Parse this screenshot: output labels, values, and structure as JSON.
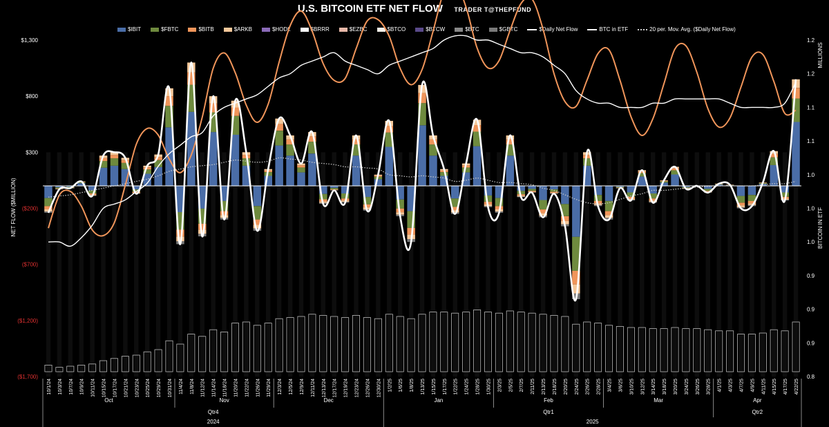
{
  "title": "U.S. BITCOIN ETF NET FLOW",
  "subtitle": "TRADER T@THEPFUND",
  "colors": {
    "background": "#000000",
    "IBIT": "#4a6da7",
    "FBTC": "#6e8a3e",
    "BITB": "#f0955a",
    "ARKB": "#f5c89a",
    "HODL": "#8a6ab8",
    "BRRR": "#ffffff",
    "EZBC": "#e8b8a8",
    "BTCO": "#f4f0e8",
    "BTCW": "#5a4a8a",
    "BTC": "#888888",
    "GBTC": "#7a7a7a",
    "daily_net_flow": "#ffffff",
    "btc_in_etf": "#ffffff",
    "moving_avg": "#cccccc",
    "negative_tick": "#e03030"
  },
  "legend": [
    {
      "key": "IBIT",
      "label": "$IBIT",
      "kind": "bar"
    },
    {
      "key": "FBTC",
      "label": "$FBTC",
      "kind": "bar"
    },
    {
      "key": "BITB",
      "label": "$BITB",
      "kind": "bar"
    },
    {
      "key": "ARKB",
      "label": "$ARKB",
      "kind": "bar"
    },
    {
      "key": "HODL",
      "label": "$HODL",
      "kind": "bar"
    },
    {
      "key": "BRRR",
      "label": "$BRRR",
      "kind": "bar"
    },
    {
      "key": "EZBC",
      "label": "$EZBC",
      "kind": "bar"
    },
    {
      "key": "BTCO",
      "label": "$BTCO",
      "kind": "bar"
    },
    {
      "key": "BTCW",
      "label": "$BTCW",
      "kind": "bar"
    },
    {
      "key": "BTC",
      "label": "$BTC",
      "kind": "bar"
    },
    {
      "key": "GBTC",
      "label": "$GBTC",
      "kind": "bar"
    },
    {
      "key": "daily_net_flow",
      "label": "$Daily Net Flow",
      "kind": "line"
    },
    {
      "key": "btc_in_etf",
      "label": "BTC in ETF",
      "kind": "line"
    },
    {
      "key": "moving_avg",
      "label": "20 per. Mov. Avg. ($Daily Net Flow)",
      "kind": "dotted"
    }
  ],
  "chart_data": {
    "type": "bar",
    "title": "U.S. BITCOIN ETF NET FLOW",
    "ylabel": "NET FLOW ($MILLION)",
    "y2label": "BITCOIN IN ETF",
    "y3label": "MILLIONS",
    "ylim": [
      -1700,
      1300
    ],
    "y2lim": [
      0.8,
      1.2
    ],
    "y_ticks": [
      {
        "v": 1300,
        "label": "$1,300",
        "negative": false
      },
      {
        "v": 800,
        "label": "$800",
        "negative": false
      },
      {
        "v": 300,
        "label": "$300",
        "negative": false
      },
      {
        "v": -200,
        "label": "($200)",
        "negative": true
      },
      {
        "v": -700,
        "label": "($700)",
        "negative": true
      },
      {
        "v": -1200,
        "label": "($1,200)",
        "negative": true
      },
      {
        "v": -1700,
        "label": "($1,700)",
        "negative": true
      }
    ],
    "y2_ticks": [
      "1.2",
      "1.2",
      "1.1",
      "1.1",
      "1.0",
      "1.0",
      "1.0",
      "0.9",
      "0.9",
      "0.9",
      "0.8"
    ],
    "date_labels": [
      "10/1/24",
      "10/3/24",
      "10/7/24",
      "10/9/24",
      "10/11/24",
      "10/15/24",
      "10/17/24",
      "10/21/24",
      "10/23/24",
      "10/25/24",
      "10/29/24",
      "10/31/24",
      "11/4/24",
      "11/8/24",
      "11/12/24",
      "11/14/24",
      "11/18/24",
      "11/20/24",
      "11/22/24",
      "11/26/24",
      "11/29/24",
      "12/3/24",
      "12/5/24",
      "12/9/24",
      "12/11/24",
      "12/13/24",
      "12/17/24",
      "12/19/24",
      "12/23/24",
      "12/26/24",
      "12/30/24",
      "1/2/25",
      "1/6/25",
      "1/8/25",
      "1/13/25",
      "1/15/25",
      "1/17/25",
      "1/22/25",
      "1/24/25",
      "1/28/25",
      "1/30/25",
      "2/3/25",
      "2/5/25",
      "2/7/25",
      "2/11/25",
      "2/13/25",
      "2/18/25",
      "2/20/25",
      "2/24/25",
      "2/26/25",
      "2/28/25",
      "3/4/25",
      "3/6/25",
      "3/10/25",
      "3/12/25",
      "3/14/25",
      "3/18/25",
      "3/20/25",
      "3/24/25",
      "3/26/25",
      "3/28/25",
      "4/1/25",
      "4/3/25",
      "4/7/25",
      "4/9/25",
      "4/11/25",
      "4/15/25",
      "4/17/25",
      "4/22/25"
    ],
    "months": [
      {
        "label": "Oct",
        "start": 0,
        "end": 11
      },
      {
        "label": "Nov",
        "start": 12,
        "end": 20
      },
      {
        "label": "Dec",
        "start": 21,
        "end": 30
      },
      {
        "label": "Jan",
        "start": 31,
        "end": 40
      },
      {
        "label": "Feb",
        "start": 41,
        "end": 50
      },
      {
        "label": "Mar",
        "start": 51,
        "end": 60
      },
      {
        "label": "Apr",
        "start": 61,
        "end": 68
      }
    ],
    "quarters": [
      {
        "label": "Qtr4",
        "start": 0,
        "end": 30
      },
      {
        "label": "Qtr1",
        "start": 31,
        "end": 60
      },
      {
        "label": "Qtr2",
        "start": 61,
        "end": 68
      }
    ],
    "years": [
      {
        "label": "2024",
        "start": 0,
        "end": 30
      },
      {
        "label": "2025",
        "start": 31,
        "end": 68
      }
    ],
    "daily_net_flow": [
      -240,
      -30,
      -20,
      40,
      -90,
      270,
      300,
      250,
      -70,
      180,
      280,
      870,
      -520,
      1100,
      -450,
      800,
      -300,
      760,
      300,
      -400,
      150,
      600,
      450,
      200,
      480,
      -160,
      -40,
      -150,
      450,
      -220,
      100,
      580,
      -270,
      -500,
      900,
      450,
      150,
      -250,
      200,
      590,
      -190,
      -240,
      450,
      -100,
      -60,
      -280,
      -70,
      -360,
      -1010,
      300,
      -180,
      -300,
      -20,
      -130,
      140,
      -150,
      50,
      170,
      -25,
      0,
      -60,
      20,
      10,
      -200,
      -180,
      30,
      310,
      -130,
      950
    ],
    "btc_in_etf": [
      0.96,
      0.96,
      0.955,
      0.965,
      0.98,
      1.0,
      1.005,
      1.01,
      1.02,
      1.03,
      1.05,
      1.065,
      1.075,
      1.085,
      1.09,
      1.11,
      1.12,
      1.125,
      1.13,
      1.135,
      1.145,
      1.155,
      1.16,
      1.17,
      1.175,
      1.18,
      1.185,
      1.175,
      1.17,
      1.165,
      1.16,
      1.17,
      1.175,
      1.18,
      1.185,
      1.19,
      1.2,
      1.205,
      1.205,
      1.2,
      1.2,
      1.195,
      1.19,
      1.185,
      1.185,
      1.18,
      1.17,
      1.16,
      1.14,
      1.13,
      1.125,
      1.125,
      1.12,
      1.12,
      1.12,
      1.125,
      1.125,
      1.13,
      1.13,
      1.13,
      1.13,
      1.13,
      1.125,
      1.12,
      1.12,
      1.12,
      1.12,
      1.125,
      1.15
    ],
    "moving_avg": [
      -100,
      -90,
      -80,
      -60,
      -40,
      -20,
      0,
      20,
      40,
      60,
      90,
      130,
      150,
      170,
      180,
      190,
      210,
      230,
      220,
      210,
      220,
      250,
      240,
      230,
      210,
      200,
      190,
      170,
      170,
      160,
      150,
      100,
      90,
      80,
      90,
      80,
      70,
      40,
      50,
      70,
      50,
      30,
      30,
      20,
      10,
      -20,
      -40,
      -80,
      -120,
      -150,
      -160,
      -150,
      -120,
      -90,
      -70,
      -40,
      -40,
      -30,
      -20,
      -10,
      -5,
      0,
      0,
      0,
      0,
      10,
      20,
      20,
      40
    ],
    "cumulative_flow_b": [
      12,
      8,
      10,
      12,
      14,
      20,
      24,
      28,
      30,
      36,
      40,
      56,
      50,
      68,
      64,
      76,
      72,
      88,
      90,
      84,
      88,
      96,
      98,
      100,
      104,
      102,
      100,
      98,
      102,
      98,
      96,
      104,
      100,
      96,
      104,
      108,
      108,
      106,
      108,
      112,
      108,
      106,
      110,
      108,
      106,
      104,
      102,
      100,
      86,
      90,
      88,
      84,
      82,
      80,
      80,
      78,
      78,
      80,
      78,
      78,
      76,
      74,
      74,
      68,
      68,
      70,
      76,
      74,
      90
    ]
  }
}
